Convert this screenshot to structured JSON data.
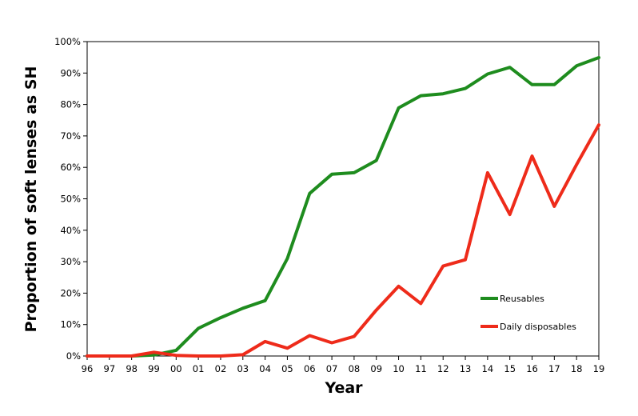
{
  "chart_data": {
    "type": "line",
    "title": "",
    "xlabel": "Year",
    "ylabel": "Proportion of soft lenses as SH",
    "categories": [
      "96",
      "97",
      "98",
      "99",
      "00",
      "01",
      "02",
      "03",
      "04",
      "05",
      "06",
      "07",
      "08",
      "09",
      "10",
      "11",
      "12",
      "13",
      "14",
      "15",
      "16",
      "17",
      "18",
      "19"
    ],
    "ylim": [
      0,
      100
    ],
    "yticks": [
      "0%",
      "10%",
      "20%",
      "30%",
      "40%",
      "50%",
      "60%",
      "70%",
      "80%",
      "90%",
      "100%"
    ],
    "grid": false,
    "legend_position": "bottom-right",
    "series": [
      {
        "name": "Reusables",
        "color": "#1e8c1e",
        "values": [
          0,
          0,
          0,
          0.3,
          1.8,
          8.8,
          12.2,
          15.2,
          17.6,
          31,
          51.7,
          57.8,
          58.3,
          62.2,
          78.9,
          82.8,
          83.4,
          85.1,
          89.7,
          91.8,
          86.3,
          86.3,
          92.3,
          94.9
        ]
      },
      {
        "name": "Daily disposables",
        "color": "#ee2b1a",
        "values": [
          0,
          0,
          0,
          1.2,
          0.2,
          0,
          0,
          0.4,
          4.6,
          2.5,
          6.5,
          4.2,
          6.2,
          14.6,
          22.2,
          16.7,
          28.6,
          30.6,
          58.3,
          45,
          63.6,
          47.6,
          60.9,
          73.5
        ]
      }
    ]
  }
}
